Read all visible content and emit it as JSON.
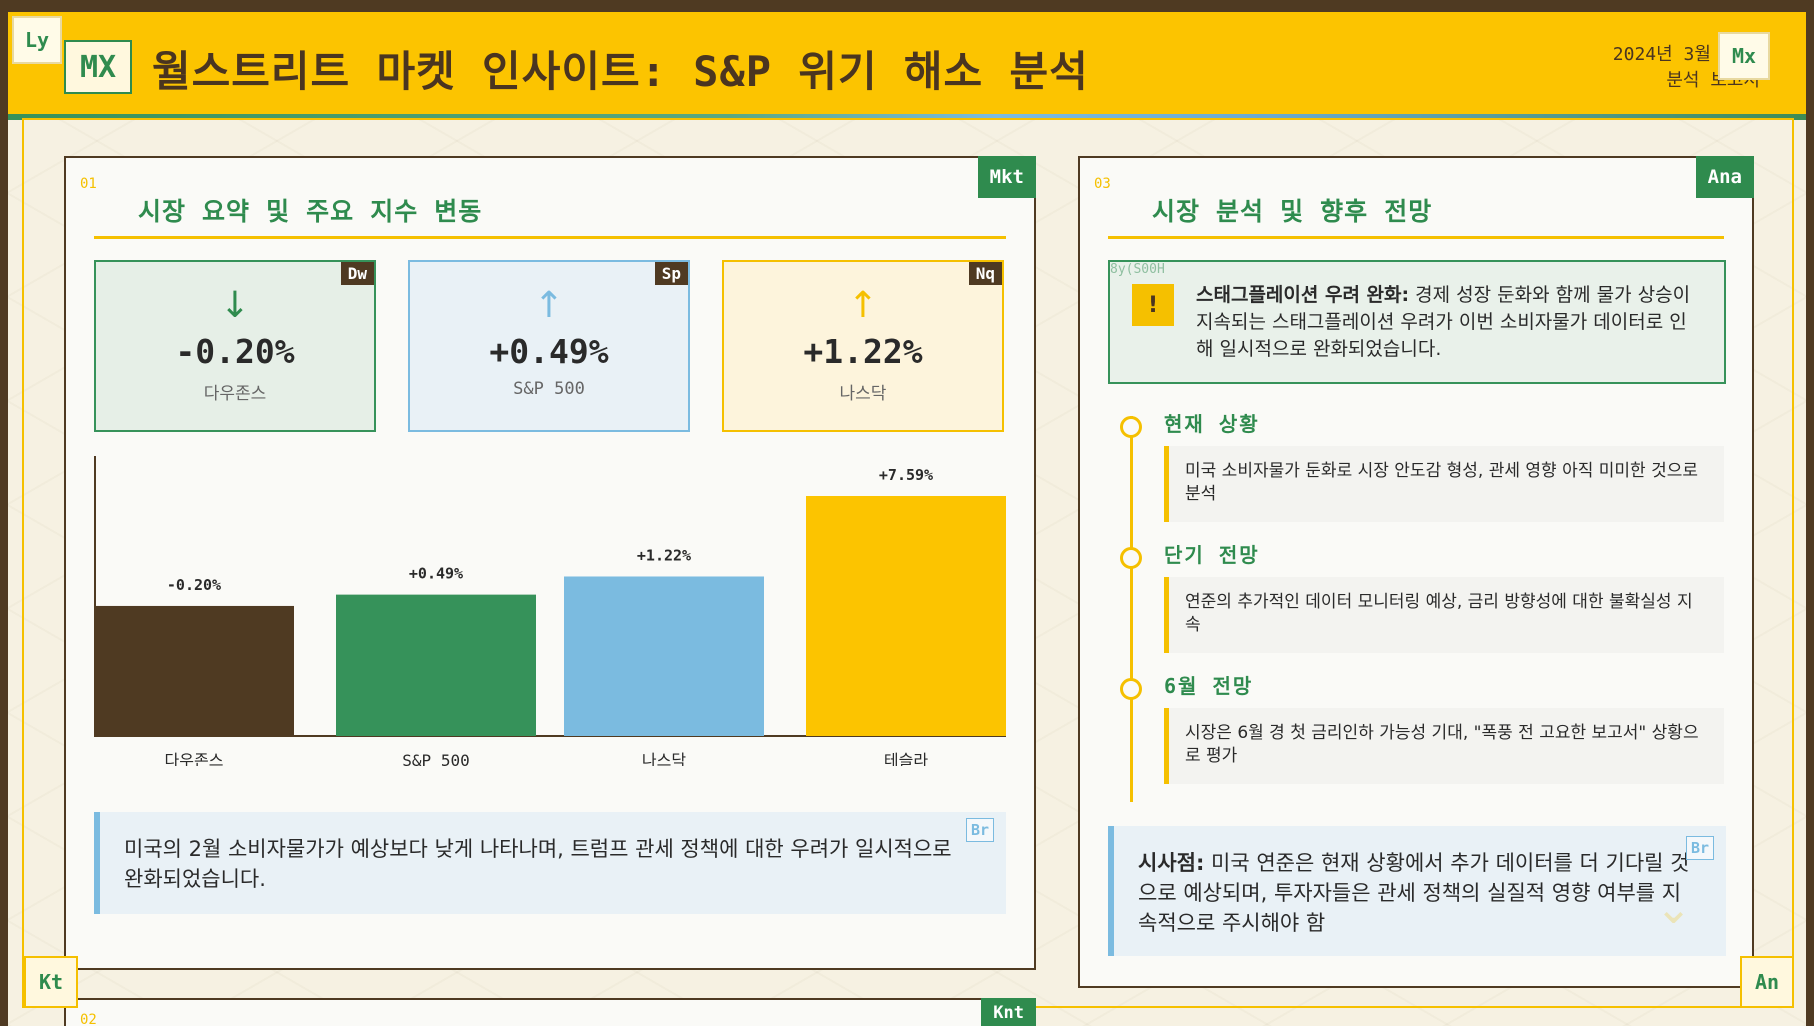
{
  "header": {
    "logo": "MX",
    "title": "월스트리트 마켓 인사이트: S&P 위기 해소 분석",
    "date": "2024년 3월 13일",
    "report_type": "분석 보고서",
    "tag_top_left": "Ly",
    "tag_top_right": "Mx",
    "tag_bottom_left": "Kt",
    "tag_bottom_right": "An"
  },
  "colors": {
    "brown": "#4f3a22",
    "green": "#36925a",
    "blue": "#7bbbe0",
    "yellow": "#fcc400"
  },
  "market_panel": {
    "num": "01",
    "tag": "Mkt",
    "title": "시장 요약 및 주요 지수 변동",
    "cards": [
      {
        "badge": "Dw",
        "arrow": "↓",
        "value": "-0.20%",
        "label": "다우존스",
        "icon": "arrow-down-icon"
      },
      {
        "badge": "Sp",
        "arrow": "↑",
        "value": "+0.49%",
        "label": "S&P 500",
        "icon": "arrow-up-icon"
      },
      {
        "badge": "Nq",
        "arrow": "↑",
        "value": "+1.22%",
        "label": "나스닥",
        "icon": "arrow-up-icon"
      }
    ],
    "note": "미국의 2월 소비자물가가 예상보다 낮게 나타나며, 트럼프 관세 정책에 대한 우려가 일시적으로 완화되었습니다.",
    "note_tag": "Br"
  },
  "chart_data": {
    "type": "bar",
    "categories": [
      "다우존스",
      "S&P 500",
      "나스닥",
      "테슬라"
    ],
    "values": [
      -0.2,
      0.49,
      1.22,
      7.59
    ],
    "data_labels": [
      "-0.20%",
      "+0.49%",
      "+1.22%",
      "+7.59%"
    ],
    "colors": [
      "#4f3a22",
      "#36925a",
      "#7bbbe0",
      "#fcc400"
    ],
    "title": "",
    "xlabel": "",
    "ylabel": "",
    "grid": false,
    "legend": "none"
  },
  "analysis_panel": {
    "num": "03",
    "tag": "Ana",
    "title": "시장 분석 및 향후 전망",
    "alert_ghost": "8y(S00H",
    "alert_icon": "!",
    "alert_title": "스태그플레이션 우려 완화:",
    "alert_body": " 경제 성장 둔화와 함께 물가 상승이 지속되는 스태그플레이션 우려가 이번 소비자물가 데이터로 인해 일시적으로 완화되었습니다.",
    "timeline": [
      {
        "title": "현재 상황",
        "body": "미국 소비자물가 둔화로 시장 안도감 형성, 관세 영향 아직 미미한 것으로 분석"
      },
      {
        "title": "단기 전망",
        "body": "연준의 추가적인 데이터 모니터링 예상, 금리 방향성에 대한 불확실성 지속"
      },
      {
        "title": "6월 전망",
        "body": "시장은 6월 경 첫 금리인하 가능성 기대, \"폭풍 전 고요한 보고서\" 상황으로 평가"
      }
    ],
    "implication_title": "시사점:",
    "implication_body": " 미국 연준은 현재 상황에서 추가 데이터를 더 기다릴 것으로 예상되며, 투자자들은 관세 정책의 실질적 영향 여부를 지속적으로 주시해야 함",
    "implication_tag": "Br"
  },
  "bottom_panel": {
    "num": "02",
    "tag": "Knt"
  }
}
